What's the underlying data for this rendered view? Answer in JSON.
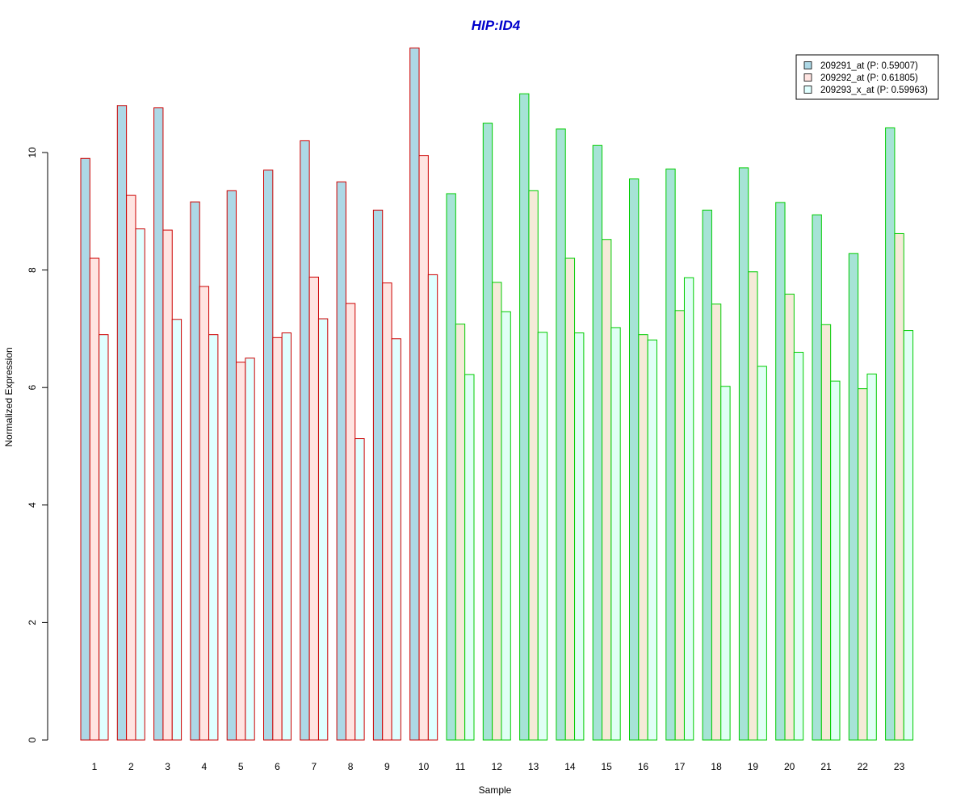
{
  "chart_data": {
    "type": "bar",
    "title": "HIP:ID4",
    "xlabel": "Sample",
    "ylabel": "Normalized Expression",
    "ylim": [
      0,
      11.8
    ],
    "yticks": [
      0,
      2,
      4,
      6,
      8,
      10
    ],
    "grid": false,
    "legend_position": "top-right",
    "categories": [
      "1",
      "2",
      "3",
      "4",
      "5",
      "6",
      "7",
      "8",
      "9",
      "10",
      "11",
      "12",
      "13",
      "14",
      "15",
      "16",
      "17",
      "18",
      "19",
      "20",
      "21",
      "22",
      "23"
    ],
    "groups": [
      {
        "name": "HIP",
        "samples": [
          "1",
          "2",
          "3",
          "4",
          "5",
          "6",
          "7",
          "8",
          "9",
          "10"
        ],
        "border_color": "#cc0000",
        "fills": [
          "#add8e6",
          "#ffe4e1",
          "#e0ffff"
        ]
      },
      {
        "name": "ID4",
        "samples": [
          "11",
          "12",
          "13",
          "14",
          "15",
          "16",
          "17",
          "18",
          "19",
          "20",
          "21",
          "22",
          "23"
        ],
        "border_color": "#00cc00",
        "fills": [
          "#a6e3d6",
          "#f5ead8",
          "#e0fff5"
        ]
      }
    ],
    "series": [
      {
        "name": "209291_at (P: 0.59007)",
        "values": [
          9.9,
          10.8,
          10.76,
          9.16,
          9.35,
          9.7,
          10.2,
          9.5,
          9.02,
          11.78,
          9.3,
          10.5,
          11.0,
          10.4,
          10.12,
          9.55,
          9.72,
          9.02,
          9.74,
          9.15,
          8.94,
          8.28,
          10.42
        ]
      },
      {
        "name": "209292_at (P: 0.61805)",
        "values": [
          8.2,
          9.27,
          8.68,
          7.72,
          6.43,
          6.85,
          7.88,
          7.43,
          7.78,
          9.95,
          7.08,
          7.79,
          9.35,
          8.2,
          8.52,
          6.9,
          7.31,
          7.42,
          7.97,
          7.59,
          7.07,
          5.98,
          8.62
        ]
      },
      {
        "name": "209293_x_at (P: 0.59963)",
        "values": [
          6.9,
          8.7,
          7.16,
          6.9,
          6.5,
          6.93,
          7.17,
          5.13,
          6.83,
          7.92,
          6.22,
          7.29,
          6.94,
          6.93,
          7.02,
          6.81,
          7.87,
          6.02,
          6.36,
          6.6,
          6.11,
          6.23,
          6.97
        ]
      }
    ],
    "legend_fills": [
      "#add8e6",
      "#ffe4e1",
      "#e0ffff"
    ],
    "title_color": "#0000cc"
  }
}
